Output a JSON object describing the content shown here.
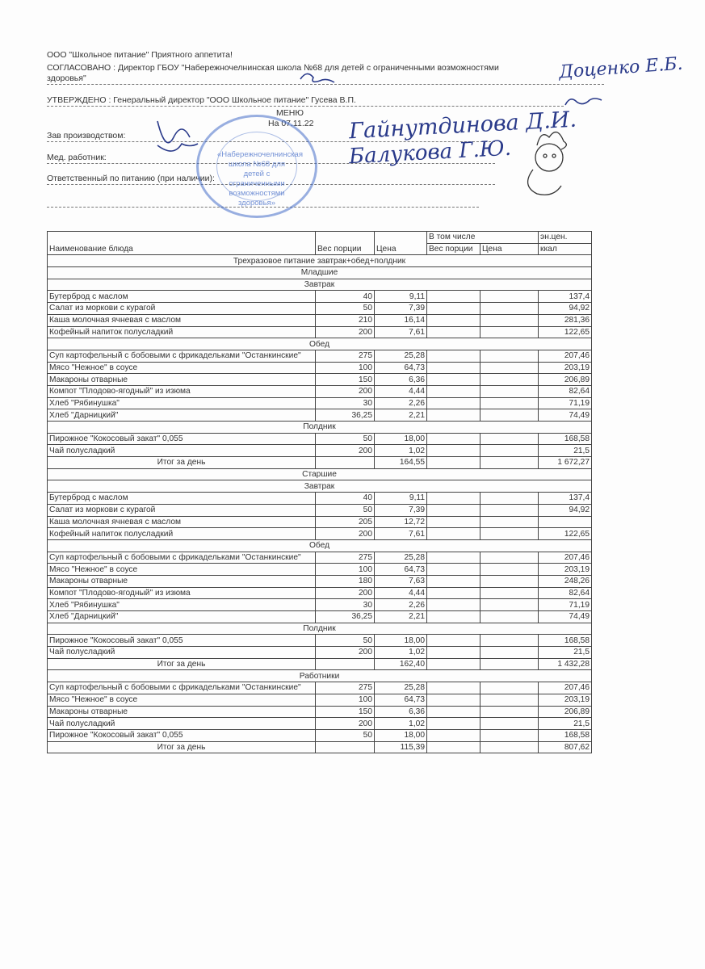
{
  "header": {
    "line1": "ООО \"Школьное питание\" Приятного аппетита!",
    "agreed": "СОГЛАСОВАНО : Директор ГБОУ \"Набережночелнинская школа №68 для детей с ограниченными возможностями",
    "agreed2": "здоровья\"",
    "approved": "УТВЕРЖДЕНО : Генеральный директор \"ООО Школьное питание\" Гусева В.П.",
    "menu": "МЕНЮ",
    "date": "На 07.11.22",
    "production": "Зав производством:",
    "medic": "Мед. работник:",
    "responsible": "Ответственный по питанию (при наличии):"
  },
  "stamp": {
    "text": "«Набережночелнинская школа №68 для детей с ограниченными возможностями здоровья»",
    "color": "#466ec8"
  },
  "signatures": {
    "production_name": "Гайнутдинова Д.И.",
    "medic_name": "Балукова Г.Ю.",
    "director": "Доценко Е.Б.",
    "general": "Гусева"
  },
  "table": {
    "headers": {
      "name": "Наименование блюда",
      "weight": "Вес порции",
      "price": "Цена",
      "including": "В том числе",
      "inc_weight": "Вес порции",
      "inc_price": "Цена",
      "energy": "эн.цен.",
      "kcal": "ккал"
    },
    "rows": [
      {
        "type": "section",
        "label": "Трехразовое питание завтрак+обед+полдник"
      },
      {
        "type": "section",
        "label": "Младшие"
      },
      {
        "type": "section",
        "label": "Завтрак"
      },
      {
        "type": "item",
        "name": "Бутерброд с маслом",
        "weight": "40",
        "price": "9,11",
        "kcal": "137,4"
      },
      {
        "type": "item",
        "name": "Салат из моркови с курагой",
        "weight": "50",
        "price": "7,39",
        "kcal": "94,92"
      },
      {
        "type": "item",
        "name": "Каша молочная ячневая с маслом",
        "weight": "210",
        "price": "16,14",
        "kcal": "281,36"
      },
      {
        "type": "item",
        "name": "Кофейный напиток полусладкий",
        "weight": "200",
        "price": "7,61",
        "kcal": "122,65"
      },
      {
        "type": "section",
        "label": "Обед"
      },
      {
        "type": "item",
        "name": "Суп картофельный с бобовыми с фрикадельками \"Останкинские\"",
        "weight": "275",
        "price": "25,28",
        "kcal": "207,46"
      },
      {
        "type": "item",
        "name": "Мясо \"Нежное\" в соусе",
        "weight": "100",
        "price": "64,73",
        "kcal": "203,19"
      },
      {
        "type": "item",
        "name": "Макароны отварные",
        "weight": "150",
        "price": "6,36",
        "kcal": "206,89"
      },
      {
        "type": "item",
        "name": "Компот \"Плодово-ягодный\" из изюма",
        "weight": "200",
        "price": "4,44",
        "kcal": "82,64"
      },
      {
        "type": "item",
        "name": "Хлеб \"Рябинушка\"",
        "weight": "30",
        "price": "2,26",
        "kcal": "71,19"
      },
      {
        "type": "item",
        "name": "Хлеб \"Дарницкий\"",
        "weight": "36,25",
        "price": "2,21",
        "kcal": "74,49"
      },
      {
        "type": "section",
        "label": "Полдник"
      },
      {
        "type": "item",
        "name": "Пирожное \"Кокосовый закат\" 0,055",
        "weight": "50",
        "price": "18,00",
        "kcal": "168,58"
      },
      {
        "type": "item",
        "name": "Чай полусладкий",
        "weight": "200",
        "price": "1,02",
        "kcal": "21,5"
      },
      {
        "type": "total",
        "name": "Итог за день",
        "price": "164,55",
        "kcal": "1 672,27"
      },
      {
        "type": "section",
        "label": "Старшие"
      },
      {
        "type": "section",
        "label": "Завтрак"
      },
      {
        "type": "item",
        "name": "Бутерброд с маслом",
        "weight": "40",
        "price": "9,11",
        "kcal": "137,4"
      },
      {
        "type": "item",
        "name": "Салат из моркови с курагой",
        "weight": "50",
        "price": "7,39",
        "kcal": "94,92"
      },
      {
        "type": "item",
        "name": "Каша молочная ячневая с маслом",
        "weight": "205",
        "price": "12,72",
        "kcal": ""
      },
      {
        "type": "item",
        "name": "Кофейный напиток полусладкий",
        "weight": "200",
        "price": "7,61",
        "kcal": "122,65"
      },
      {
        "type": "section",
        "label": "Обед"
      },
      {
        "type": "item",
        "name": "Суп картофельный с бобовыми с фрикадельками \"Останкинские\"",
        "weight": "275",
        "price": "25,28",
        "kcal": "207,46"
      },
      {
        "type": "item",
        "name": "Мясо \"Нежное\" в соусе",
        "weight": "100",
        "price": "64,73",
        "kcal": "203,19"
      },
      {
        "type": "item",
        "name": "Макароны отварные",
        "weight": "180",
        "price": "7,63",
        "kcal": "248,26"
      },
      {
        "type": "item",
        "name": "Компот \"Плодово-ягодный\" из изюма",
        "weight": "200",
        "price": "4,44",
        "kcal": "82,64"
      },
      {
        "type": "item",
        "name": "Хлеб \"Рябинушка\"",
        "weight": "30",
        "price": "2,26",
        "kcal": "71,19"
      },
      {
        "type": "item",
        "name": "Хлеб \"Дарницкий\"",
        "weight": "36,25",
        "price": "2,21",
        "kcal": "74,49"
      },
      {
        "type": "section",
        "label": "Полдник"
      },
      {
        "type": "item",
        "name": "Пирожное \"Кокосовый закат\" 0,055",
        "weight": "50",
        "price": "18,00",
        "kcal": "168,58"
      },
      {
        "type": "item",
        "name": "Чай полусладкий",
        "weight": "200",
        "price": "1,02",
        "kcal": "21,5"
      },
      {
        "type": "total",
        "name": "Итог за день",
        "price": "162,40",
        "kcal": "1 432,28"
      },
      {
        "type": "section",
        "label": "Работники"
      },
      {
        "type": "item",
        "name": "Суп картофельный с бобовыми с фрикадельками \"Останкинские\"",
        "weight": "275",
        "price": "25,28",
        "kcal": "207,46"
      },
      {
        "type": "item",
        "name": "Мясо \"Нежное\" в соусе",
        "weight": "100",
        "price": "64,73",
        "kcal": "203,19"
      },
      {
        "type": "item",
        "name": "Макароны отварные",
        "weight": "150",
        "price": "6,36",
        "kcal": "206,89"
      },
      {
        "type": "item",
        "name": "Чай полусладкий",
        "weight": "200",
        "price": "1,02",
        "kcal": "21,5"
      },
      {
        "type": "item",
        "name": "Пирожное \"Кокосовый закат\" 0,055",
        "weight": "50",
        "price": "18,00",
        "kcal": "168,58"
      },
      {
        "type": "total",
        "name": "Итог за день",
        "price": "115,39",
        "kcal": "807,62"
      }
    ]
  }
}
